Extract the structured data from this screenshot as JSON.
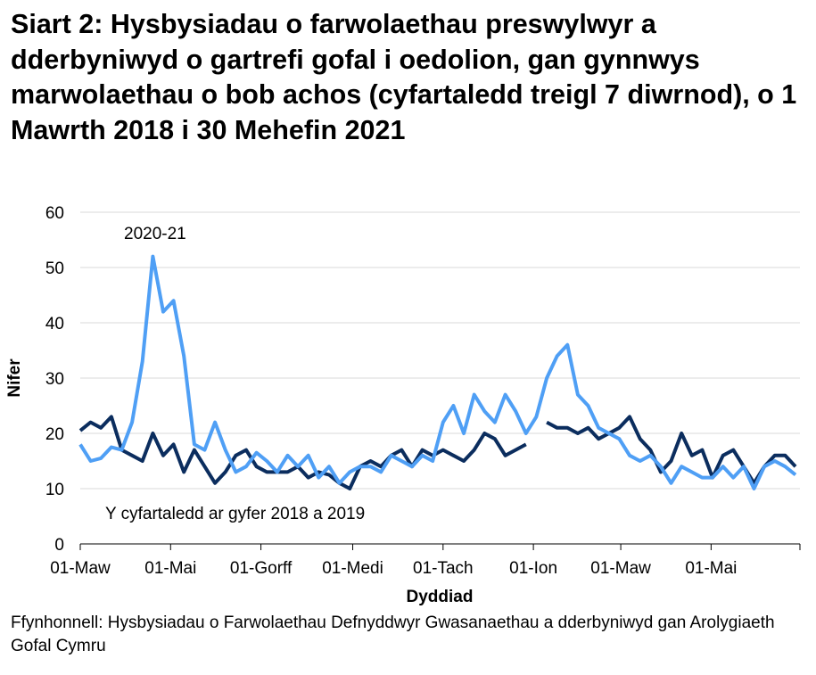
{
  "title": "Siart 2: Hysbysiadau o farwolaethau preswylwyr a dderbyniwyd o gartrefi gofal i oedolion, gan gynnwys marwolaethau o bob achos (cyfartaledd treigl 7 diwrnod), o 1 Mawrth 2018 i 30 Mehefin 2021",
  "source": "Ffynhonnell: Hysbysiadau o Farwolaethau Defnyddwyr Gwasanaethau a dderbyniwyd gan Arolygiaeth Gofal Cymru",
  "chart_data": {
    "type": "line",
    "title": "Siart 2: Hysbysiadau o farwolaethau preswylwyr a dderbyniwyd o gartrefi gofal i oedolion, gan gynnwys marwolaethau o bob achos (cyfartaledd treigl 7 diwrnod), o 1 Mawrth 2018 i 30 Mehefin 2021",
    "xlabel": "Dyddiad",
    "ylabel": "Nifer",
    "ylim": [
      0,
      60
    ],
    "yticks": [
      0,
      10,
      20,
      30,
      40,
      50,
      60
    ],
    "x_start": "2020-03-01",
    "x_end": "2021-06-30",
    "x_step_days": 7,
    "xticks": [
      {
        "date": "2020-03-01",
        "label": "01-Maw"
      },
      {
        "date": "2020-05-01",
        "label": "01-Mai"
      },
      {
        "date": "2020-07-01",
        "label": "01-Gorff"
      },
      {
        "date": "2020-09-01",
        "label": "01-Medi"
      },
      {
        "date": "2020-11-01",
        "label": "01-Tach"
      },
      {
        "date": "2021-01-01",
        "label": "01-Ion"
      },
      {
        "date": "2021-03-01",
        "label": "01-Maw"
      },
      {
        "date": "2021-05-01",
        "label": "01-Mai"
      }
    ],
    "grid": true,
    "legend": "none",
    "series": [
      {
        "name": "2020-21",
        "color": "#4f9ff5",
        "values": [
          18,
          15,
          15.5,
          17.5,
          17,
          22,
          33,
          52,
          42,
          44,
          34,
          18,
          17,
          22,
          17,
          13,
          14,
          16.5,
          15,
          13,
          16,
          14,
          16,
          12,
          14,
          11,
          13,
          14,
          14,
          13,
          16,
          15,
          14,
          16,
          15,
          22,
          25,
          20,
          27,
          24,
          22,
          27,
          24,
          20,
          23,
          30,
          34,
          36,
          27,
          25,
          21,
          20,
          19,
          16,
          15,
          16,
          14,
          11,
          14,
          13,
          12,
          12,
          14,
          12,
          14,
          10,
          14,
          15,
          14,
          12.5
        ]
      },
      {
        "name": "Y cyfartaledd ar gyfer 2018 a 2019",
        "color": "#0b2d5e",
        "values": [
          20.5,
          22,
          21,
          23,
          17,
          16,
          15,
          20,
          16,
          18,
          13,
          17,
          14,
          11,
          13,
          16,
          17,
          14,
          13,
          13,
          13,
          14,
          12,
          13,
          12.5,
          11,
          10,
          14,
          15,
          14,
          16,
          17,
          14,
          17,
          16,
          17,
          16,
          15,
          17,
          20,
          19,
          16,
          17,
          18,
          null,
          22,
          21,
          21,
          20,
          21,
          19,
          20,
          21,
          23,
          19,
          17,
          13,
          15,
          20,
          16,
          17,
          12,
          16,
          17,
          14,
          11,
          14,
          16,
          16,
          14
        ]
      }
    ],
    "annotations": [
      "2020-21",
      "Y cyfartaledd ar gyfer 2018 a 2019"
    ]
  }
}
